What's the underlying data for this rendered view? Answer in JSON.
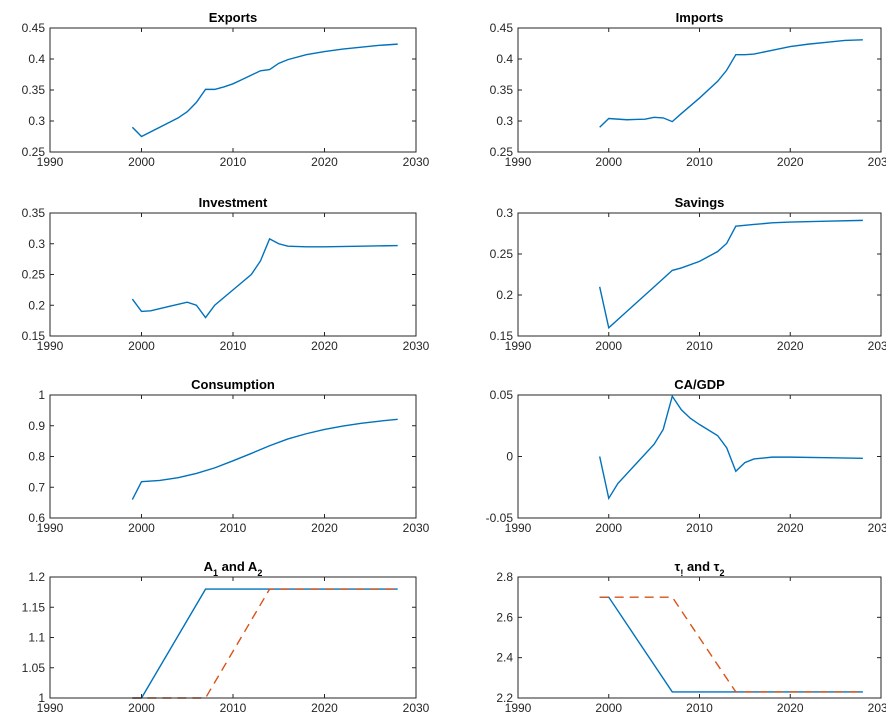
{
  "chart_data": [
    {
      "type": "line",
      "title": "Exports",
      "xlim": [
        1990,
        2030
      ],
      "ylim": [
        0.25,
        0.45
      ],
      "xticks": [
        1990,
        2000,
        2010,
        2020,
        2030
      ],
      "yticks": [
        0.25,
        0.3,
        0.35,
        0.4,
        0.45
      ],
      "xtick_labels": [
        "1990",
        "2000",
        "2010",
        "2020",
        "2030"
      ],
      "ytick_labels": [
        "0.25",
        "0.3",
        "0.35",
        "0.4",
        "0.45"
      ],
      "series": [
        {
          "color": "#0072BD",
          "style": "solid",
          "x": [
            1999,
            2000,
            2002,
            2004,
            2005,
            2006,
            2007,
            2008,
            2009,
            2010,
            2011,
            2012,
            2013,
            2014,
            2015,
            2016,
            2018,
            2020,
            2022,
            2024,
            2026,
            2028
          ],
          "y": [
            0.29,
            0.275,
            0.29,
            0.305,
            0.315,
            0.33,
            0.351,
            0.351,
            0.355,
            0.36,
            0.367,
            0.374,
            0.381,
            0.383,
            0.393,
            0.399,
            0.407,
            0.412,
            0.416,
            0.419,
            0.422,
            0.424
          ]
        }
      ]
    },
    {
      "type": "line",
      "title": "Imports",
      "xlim": [
        1990,
        2030
      ],
      "ylim": [
        0.25,
        0.45
      ],
      "xticks": [
        1990,
        2000,
        2010,
        2020,
        2030
      ],
      "yticks": [
        0.25,
        0.3,
        0.35,
        0.4,
        0.45
      ],
      "xtick_labels": [
        "1990",
        "2000",
        "2010",
        "2020",
        "2030"
      ],
      "ytick_labels": [
        "0.25",
        "0.3",
        "0.35",
        "0.4",
        "0.45"
      ],
      "series": [
        {
          "color": "#0072BD",
          "style": "solid",
          "x": [
            1999,
            2000,
            2002,
            2004,
            2005,
            2006,
            2007,
            2008,
            2010,
            2012,
            2013,
            2014,
            2015,
            2016,
            2018,
            2020,
            2022,
            2024,
            2026,
            2028
          ],
          "y": [
            0.29,
            0.304,
            0.302,
            0.303,
            0.306,
            0.305,
            0.299,
            0.312,
            0.337,
            0.364,
            0.382,
            0.407,
            0.407,
            0.408,
            0.414,
            0.42,
            0.424,
            0.427,
            0.43,
            0.431
          ]
        }
      ]
    },
    {
      "type": "line",
      "title": "Investment",
      "xlim": [
        1990,
        2030
      ],
      "ylim": [
        0.15,
        0.35
      ],
      "xticks": [
        1990,
        2000,
        2010,
        2020,
        2030
      ],
      "yticks": [
        0.15,
        0.2,
        0.25,
        0.3,
        0.35
      ],
      "xtick_labels": [
        "1990",
        "2000",
        "2010",
        "2020",
        "2030"
      ],
      "ytick_labels": [
        "0.15",
        "0.2",
        "0.25",
        "0.3",
        "0.35"
      ],
      "series": [
        {
          "color": "#0072BD",
          "style": "solid",
          "x": [
            1999,
            2000,
            2001,
            2003,
            2005,
            2006,
            2007,
            2008,
            2010,
            2012,
            2013,
            2014,
            2015,
            2016,
            2018,
            2020,
            2024,
            2028
          ],
          "y": [
            0.21,
            0.19,
            0.191,
            0.198,
            0.205,
            0.2,
            0.18,
            0.2,
            0.225,
            0.25,
            0.272,
            0.308,
            0.3,
            0.296,
            0.295,
            0.295,
            0.296,
            0.297
          ]
        }
      ]
    },
    {
      "type": "line",
      "title": "Savings",
      "xlim": [
        1990,
        2030
      ],
      "ylim": [
        0.15,
        0.3
      ],
      "xticks": [
        1990,
        2000,
        2010,
        2020,
        2030
      ],
      "yticks": [
        0.15,
        0.2,
        0.25,
        0.3
      ],
      "xtick_labels": [
        "1990",
        "2000",
        "2010",
        "2020",
        "2030"
      ],
      "ytick_labels": [
        "0.15",
        "0.2",
        "0.25",
        "0.3"
      ],
      "series": [
        {
          "color": "#0072BD",
          "style": "solid",
          "x": [
            1999,
            2000,
            2002,
            2004,
            2006,
            2007,
            2008,
            2010,
            2012,
            2013,
            2014,
            2016,
            2018,
            2020,
            2024,
            2028
          ],
          "y": [
            0.21,
            0.16,
            0.18,
            0.2,
            0.22,
            0.23,
            0.233,
            0.241,
            0.253,
            0.263,
            0.284,
            0.286,
            0.288,
            0.289,
            0.29,
            0.291
          ]
        }
      ]
    },
    {
      "type": "line",
      "title": "Consumption",
      "xlim": [
        1990,
        2030
      ],
      "ylim": [
        0.6,
        1
      ],
      "xticks": [
        1990,
        2000,
        2010,
        2020,
        2030
      ],
      "yticks": [
        0.6,
        0.7,
        0.8,
        0.9,
        1
      ],
      "xtick_labels": [
        "1990",
        "2000",
        "2010",
        "2020",
        "2030"
      ],
      "ytick_labels": [
        "0.6",
        "0.7",
        "0.8",
        "0.9",
        "1"
      ],
      "series": [
        {
          "color": "#0072BD",
          "style": "solid",
          "x": [
            1999,
            2000,
            2002,
            2004,
            2006,
            2008,
            2010,
            2012,
            2014,
            2016,
            2018,
            2020,
            2022,
            2024,
            2026,
            2028
          ],
          "y": [
            0.66,
            0.718,
            0.722,
            0.731,
            0.745,
            0.763,
            0.786,
            0.81,
            0.835,
            0.857,
            0.874,
            0.888,
            0.899,
            0.908,
            0.915,
            0.921
          ]
        }
      ]
    },
    {
      "type": "line",
      "title": "CA/GDP",
      "xlim": [
        1990,
        2030
      ],
      "ylim": [
        -0.05,
        0.05
      ],
      "xticks": [
        1990,
        2000,
        2010,
        2020,
        2030
      ],
      "yticks": [
        -0.05,
        0,
        0.05
      ],
      "xtick_labels": [
        "1990",
        "2000",
        "2010",
        "2020",
        "2030"
      ],
      "ytick_labels": [
        "-0.05",
        "0",
        "0.05"
      ],
      "series": [
        {
          "color": "#0072BD",
          "style": "solid",
          "x": [
            1999,
            2000,
            2001,
            2003,
            2005,
            2006,
            2007,
            2008,
            2009,
            2010,
            2012,
            2013,
            2014,
            2015,
            2016,
            2018,
            2020,
            2024,
            2028
          ],
          "y": [
            0.0,
            -0.034,
            -0.022,
            -0.006,
            0.01,
            0.022,
            0.049,
            0.038,
            0.031,
            0.026,
            0.017,
            0.007,
            -0.012,
            -0.005,
            -0.002,
            -0.0005,
            -0.0005,
            -0.001,
            -0.0015
          ]
        }
      ]
    },
    {
      "type": "line",
      "title": "A",
      "title_parts": {
        "a": "A",
        "s1": "1",
        "and": " and A",
        "s2": "2"
      },
      "xlim": [
        1990,
        2030
      ],
      "ylim": [
        1,
        1.2
      ],
      "xticks": [
        1990,
        2000,
        2010,
        2020,
        2030
      ],
      "yticks": [
        1,
        1.05,
        1.1,
        1.15,
        1.2
      ],
      "xtick_labels": [
        "1990",
        "2000",
        "2010",
        "2020",
        "2030"
      ],
      "ytick_labels": [
        "1",
        "1.05",
        "1.1",
        "1.15",
        "1.2"
      ],
      "series": [
        {
          "color": "#0072BD",
          "style": "solid",
          "x": [
            1999,
            2000,
            2007,
            2028
          ],
          "y": [
            1.0,
            1.0,
            1.18,
            1.18
          ]
        },
        {
          "color": "#D95319",
          "style": "dashed",
          "x": [
            1999,
            2007,
            2014,
            2028
          ],
          "y": [
            1.0,
            1.0,
            1.18,
            1.18
          ]
        }
      ]
    },
    {
      "type": "line",
      "title": "τ",
      "title_parts": {
        "a": "τ",
        "s1": "!",
        "and": " and τ",
        "s2": "2"
      },
      "xlim": [
        1990,
        2030
      ],
      "ylim": [
        2.2,
        2.8
      ],
      "xticks": [
        1990,
        2000,
        2010,
        2020,
        2030
      ],
      "yticks": [
        2.2,
        2.4,
        2.6,
        2.8
      ],
      "xtick_labels": [
        "1990",
        "2000",
        "2010",
        "2020",
        "2030"
      ],
      "ytick_labels": [
        "2.2",
        "2.4",
        "2.6",
        "2.8"
      ],
      "series": [
        {
          "color": "#0072BD",
          "style": "solid",
          "x": [
            1999,
            2000,
            2007,
            2028
          ],
          "y": [
            2.7,
            2.7,
            2.23,
            2.23
          ]
        },
        {
          "color": "#D95319",
          "style": "dashed",
          "x": [
            1999,
            2007,
            2014,
            2028
          ],
          "y": [
            2.7,
            2.7,
            2.23,
            2.23
          ]
        }
      ]
    }
  ]
}
